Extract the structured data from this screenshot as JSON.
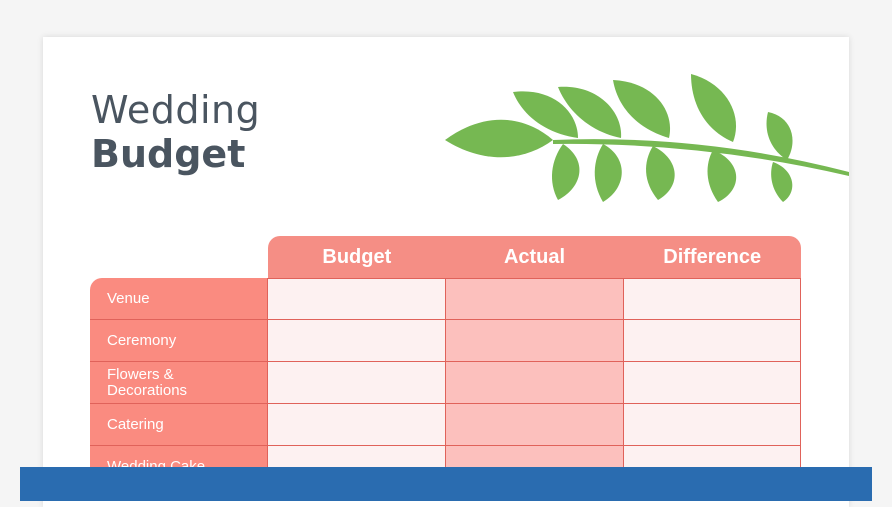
{
  "title": {
    "line1": "Wedding",
    "line2": "Budget"
  },
  "columns": [
    "Budget",
    "Actual",
    "Difference"
  ],
  "rows": [
    "Venue",
    "Ceremony",
    "Flowers & Decorations",
    "Catering",
    "Wedding Cake"
  ],
  "colors": {
    "header": "#f58e85",
    "label": "#fa8b80",
    "actual_cell": "#fcc0bd",
    "leaf": "#76b852",
    "bar": "#2a6cb0",
    "title": "#4a5560"
  }
}
